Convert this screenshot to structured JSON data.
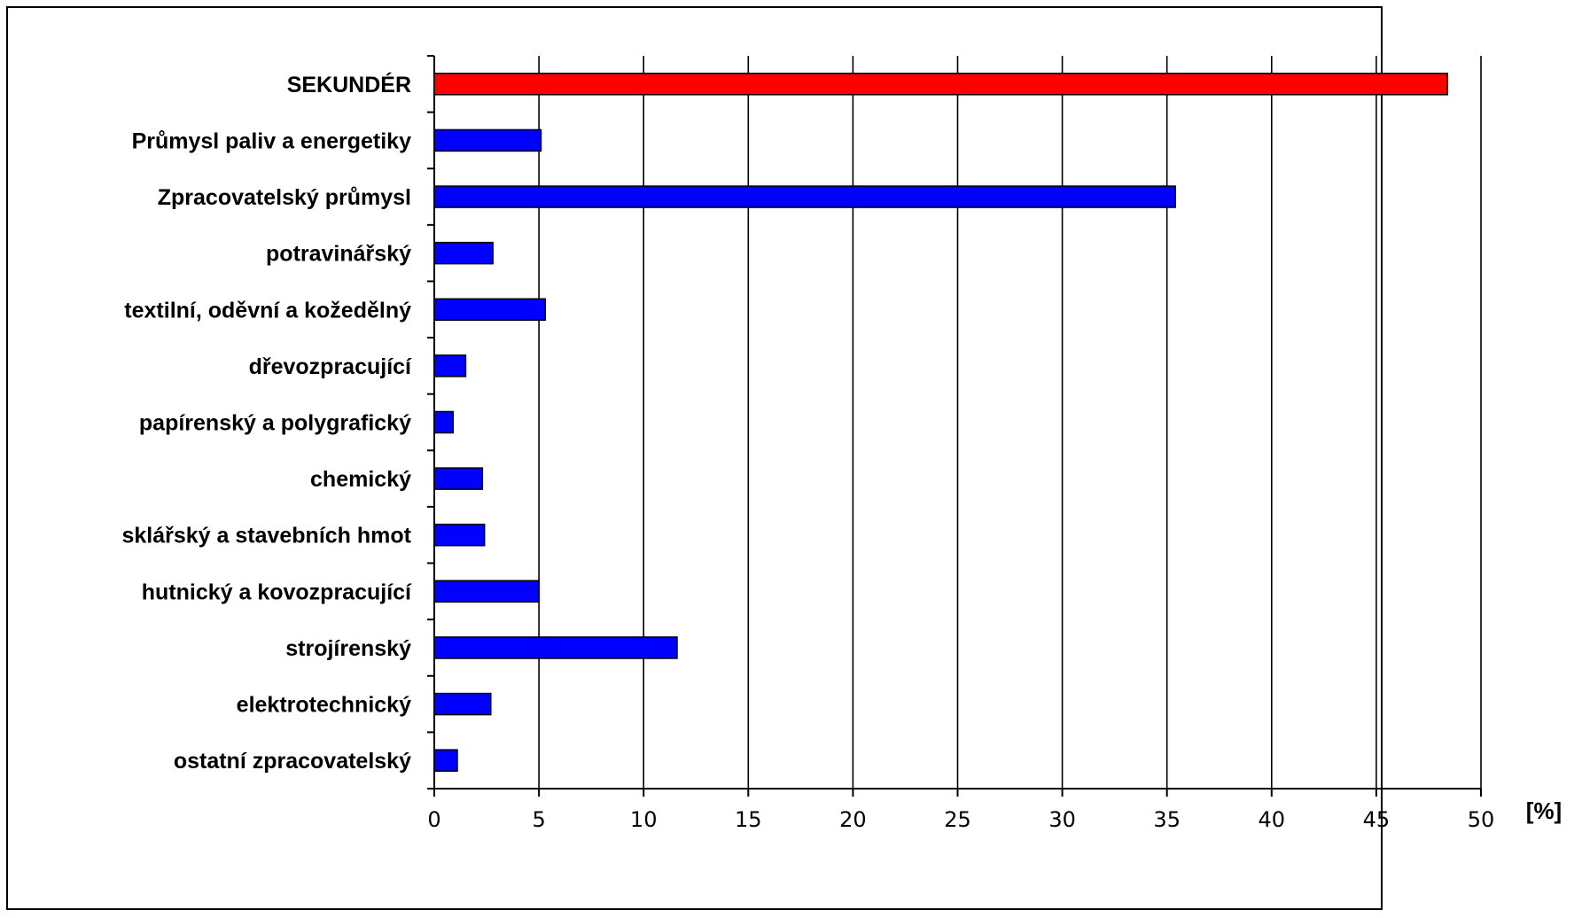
{
  "chart_data": {
    "type": "bar",
    "orientation": "horizontal",
    "title": "",
    "xlabel": "[%]",
    "ylabel": "",
    "xlim": [
      0,
      50
    ],
    "x_ticks": [
      0,
      5,
      10,
      15,
      20,
      25,
      30,
      35,
      40,
      45,
      50
    ],
    "x_tick_labels": [
      "0",
      "5",
      "10",
      "15",
      "20",
      "25",
      "30",
      "35",
      "40",
      "45",
      "50"
    ],
    "grid": "vertical",
    "legend": "none",
    "colors": {
      "highlight": "#ff0000",
      "bar": "#0000ff",
      "grid": "#000000"
    },
    "categories": [
      "SEKUNDÉR",
      "Průmysl paliv a energetiky",
      "Zpracovatelský průmysl",
      "potravinářský",
      "textilní, oděvní a kožedělný",
      "dřevozpracující",
      "papírenský a polygrafický",
      "chemický",
      "sklářský a stavebních hmot",
      "hutnický a kovozpracující",
      "strojírenský",
      "elektrotechnický",
      "ostatní zpracovatelský"
    ],
    "values": [
      48.4,
      5.1,
      35.4,
      2.8,
      5.3,
      1.5,
      0.9,
      2.3,
      2.4,
      5.0,
      11.6,
      2.7,
      1.1
    ],
    "highlight_index": 0
  }
}
